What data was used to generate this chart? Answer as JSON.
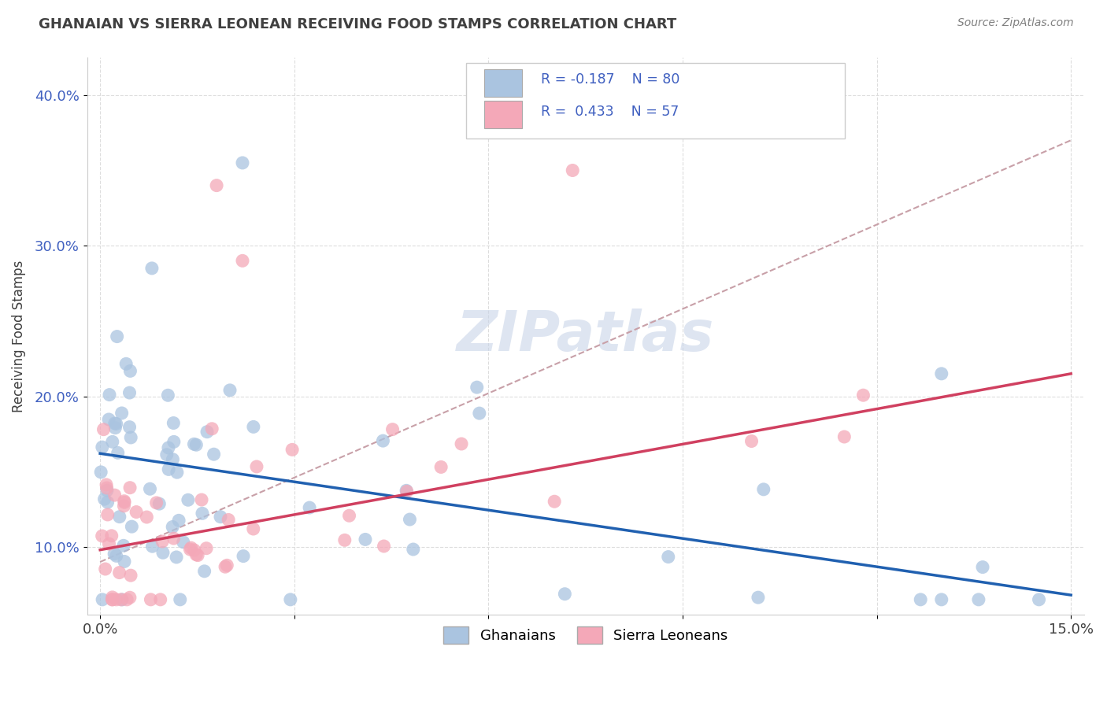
{
  "title": "GHANAIAN VS SIERRA LEONEAN RECEIVING FOOD STAMPS CORRELATION CHART",
  "source": "Source: ZipAtlas.com",
  "ylabel": "Receiving Food Stamps",
  "xlim": [
    -0.002,
    0.152
  ],
  "ylim": [
    0.055,
    0.425
  ],
  "xtick_vals": [
    0.0,
    0.03,
    0.06,
    0.09,
    0.12,
    0.15
  ],
  "xtick_labels": [
    "0.0%",
    "",
    "",
    "",
    "",
    "15.0%"
  ],
  "ytick_vals": [
    0.1,
    0.2,
    0.3,
    0.4
  ],
  "ytick_labels": [
    "10.0%",
    "20.0%",
    "30.0%",
    "40.0%"
  ],
  "ghanaian_color": "#aac4e0",
  "sierra_color": "#f4a8b8",
  "ghanaian_line_color": "#2060b0",
  "sierra_line_color": "#d04060",
  "dashed_line_color": "#c8a0a8",
  "legend_text_color": "#4060c0",
  "legend_label_ghanaian": "Ghanaians",
  "legend_label_sierra": "Sierra Leoneans",
  "watermark": "ZIPatlas",
  "watermark_color": "#c8d4e8",
  "title_color": "#404040",
  "source_color": "#808080",
  "ylabel_color": "#404040",
  "ytick_color": "#4060c0",
  "xtick_color": "#404040",
  "grid_color": "#dddddd",
  "gh_line_y0": 0.162,
  "gh_line_y1": 0.068,
  "sl_line_y0": 0.098,
  "sl_line_y1": 0.215,
  "dash_line_x0": 0.0,
  "dash_line_y0": 0.09,
  "dash_line_x1": 0.15,
  "dash_line_y1": 0.37
}
